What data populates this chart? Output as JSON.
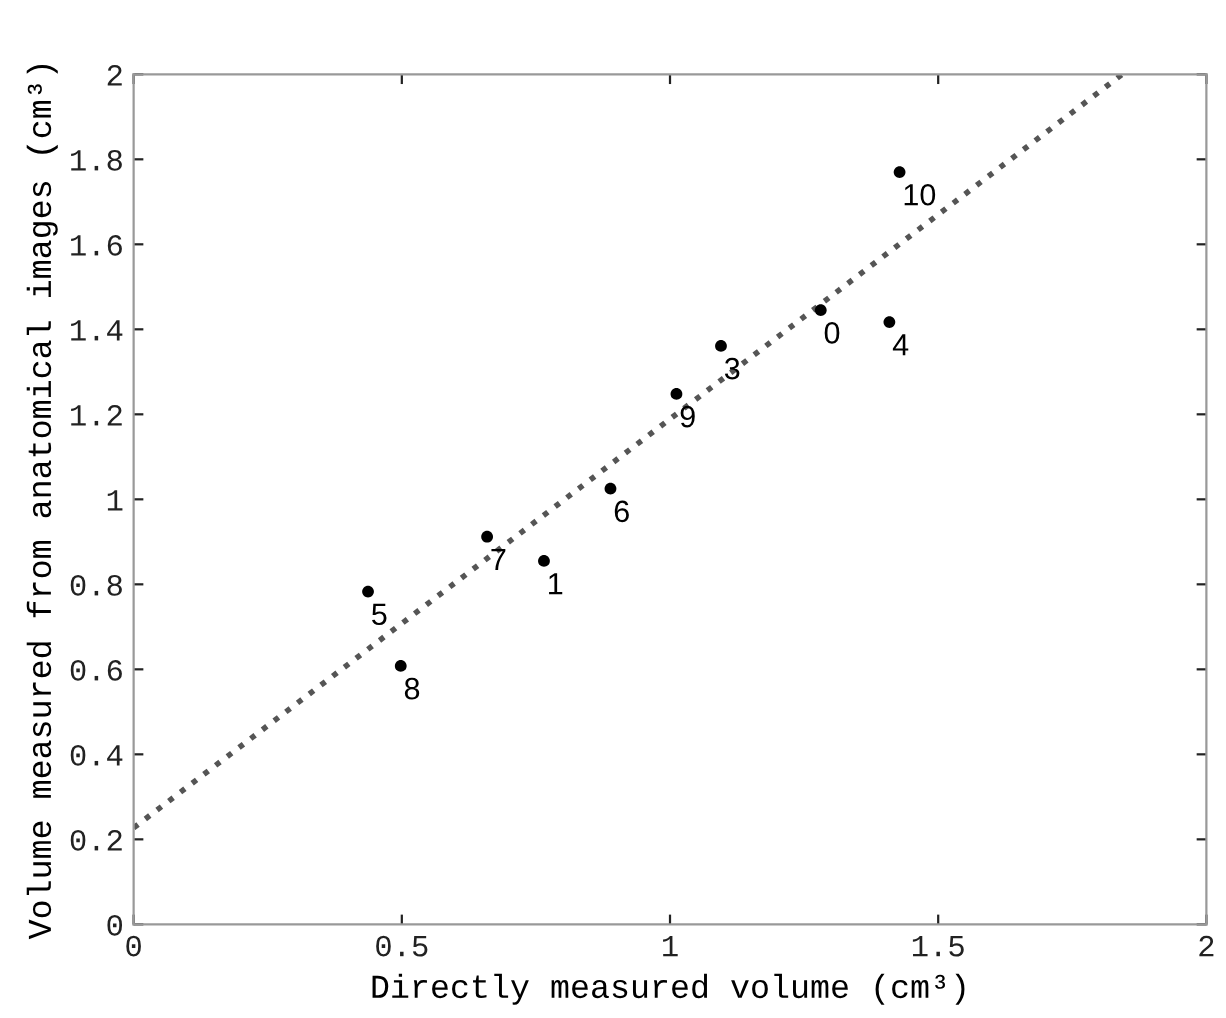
{
  "chart_data": {
    "type": "scatter",
    "xlabel": "Directly measured volume (cm³)",
    "ylabel": "Volume measured from anatomical images (cm³)",
    "x": [
      1.281,
      0.765,
      1.095,
      1.409,
      0.437,
      0.889,
      0.659,
      0.498,
      1.012,
      1.428
    ],
    "series": [
      {
        "color": "#000000",
        "marker": "circle",
        "values": [
          1.445,
          0.855,
          1.361,
          1.417,
          0.783,
          1.025,
          0.912,
          0.608,
          1.248,
          1.77
        ]
      },
      {
        "type": "line",
        "color": "#555555",
        "line_style": "dotted",
        "marker": "none",
        "x": [
          0,
          1.843
        ],
        "values": [
          0.227,
          2.0
        ]
      }
    ],
    "annotations": [
      {
        "text": "0",
        "x": 1.281,
        "y": 1.445
      },
      {
        "text": "1",
        "x": 0.765,
        "y": 0.855
      },
      {
        "text": "3",
        "x": 1.095,
        "y": 1.361
      },
      {
        "text": "4",
        "x": 1.409,
        "y": 1.417
      },
      {
        "text": "5",
        "x": 0.437,
        "y": 0.783
      },
      {
        "text": "6",
        "x": 0.889,
        "y": 1.025
      },
      {
        "text": "7",
        "x": 0.659,
        "y": 0.912
      },
      {
        "text": "8",
        "x": 0.498,
        "y": 0.608
      },
      {
        "text": "9",
        "x": 1.012,
        "y": 1.248
      },
      {
        "text": "10",
        "x": 1.428,
        "y": 1.77
      }
    ],
    "xlim": [
      0,
      2
    ],
    "ylim": [
      0,
      2
    ],
    "xticks": [
      0,
      0.5,
      1,
      1.5,
      2
    ],
    "yticks": [
      0,
      0.2,
      0.4,
      0.6,
      0.8,
      1,
      1.2,
      1.4,
      1.6,
      1.8,
      2
    ],
    "grid": false,
    "legend": false
  }
}
